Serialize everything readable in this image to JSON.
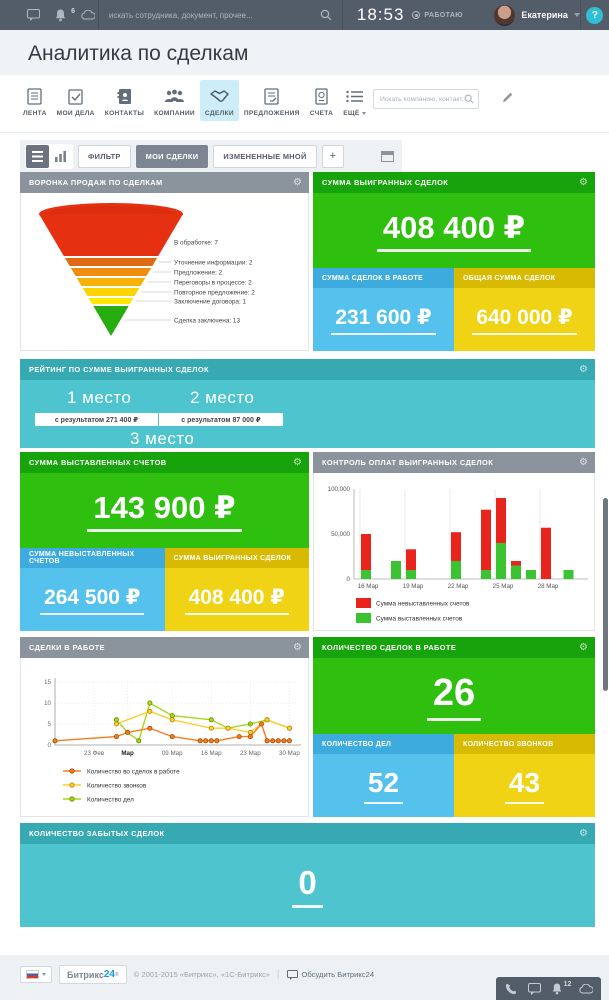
{
  "palette": {
    "topbar_bg": "#535c69",
    "widget_header_gray": "#8b949d",
    "green_header": "#17a30b",
    "green_body": "#2fc00f",
    "blue_header": "#3dabdd",
    "blue_body": "#55c2ee",
    "yellow_header": "#d8ba02",
    "yellow_body": "#f0d314",
    "teal_header": "#37a9b2",
    "teal_body": "#4ec4ce",
    "active_tab_bg": "#cdeef8"
  },
  "topbar": {
    "bell_count": "6",
    "search_placeholder": "искать сотрудника, документ, прочее...",
    "time": "18:53",
    "status": "РАБОТАЮ",
    "user_name": "Екатерина",
    "help": "?"
  },
  "page_title": "Аналитика по сделкам",
  "nav": {
    "tabs": [
      {
        "name": "lenta",
        "label": "ЛЕНТА",
        "icon": "feed-icon"
      },
      {
        "name": "moi-dela",
        "label": "МОИ ДЕЛА",
        "icon": "tasks-icon"
      },
      {
        "name": "kontakty",
        "label": "КОНТАКТЫ",
        "icon": "contacts-icon"
      },
      {
        "name": "kompanii",
        "label": "КОМПАНИИ",
        "icon": "companies-icon"
      },
      {
        "name": "sdelki",
        "label": "СДЕЛКИ",
        "icon": "deals-handshake-icon",
        "active": true
      },
      {
        "name": "predlozheniya",
        "label": "ПРЕДЛОЖЕНИЯ",
        "icon": "quotes-icon"
      },
      {
        "name": "scheta",
        "label": "СЧЕТА",
        "icon": "invoices-icon"
      },
      {
        "name": "eshche",
        "label": "ЕЩЁ",
        "icon": "more-list-icon",
        "caret": true
      }
    ],
    "search_placeholder": "Искать компанию, контакт, лид."
  },
  "toolbar": {
    "filter": "ФИЛЬТР",
    "preset_my_deals": "МОИ СДЕЛКИ",
    "preset_changed_by_me": "ИЗМЕНЕННЫЕ МНОЙ",
    "add": "+"
  },
  "widgets": {
    "funnel": {
      "title": "ВОРОНКА ПРОДАЖ ПО СДЕЛКАМ"
    },
    "won_sum": {
      "title": "СУММА ВЫИГРАННЫХ СДЕЛОК",
      "value": "408 400 ₽",
      "sub_left": {
        "title": "СУММА СДЕЛОК В РАБОТЕ",
        "value": "231 600 ₽"
      },
      "sub_right": {
        "title": "ОБЩАЯ СУММА СДЕЛОК",
        "value": "640 000 ₽"
      }
    },
    "rating": {
      "title": "РЕЙТИНГ ПО СУММЕ ВЫИГРАННЫХ СДЕЛОК",
      "place1": "1 место",
      "place1_result": "с результатом 271 400 ₽",
      "place2": "2 место",
      "place2_result": "с результатом 87 000 ₽",
      "place3": "3 место"
    },
    "invoiced_sum": {
      "title": "СУММА ВЫСТАВЛЕННЫХ СЧЕТОВ",
      "value": "143 900 ₽",
      "sub_left": {
        "title": "СУММА НЕВЫСТАВЛЕННЫХ СЧЕТОВ",
        "value": "264 500 ₽"
      },
      "sub_right": {
        "title": "СУММА ВЫИГРАННЫХ СДЕЛОК",
        "value": "408 400 ₽"
      }
    },
    "payment_control": {
      "title": "КОНТРОЛЬ ОПЛАТ ВЫИГРАННЫХ СДЕЛОК"
    },
    "deals_line": {
      "title": "СДЕЛКИ В РАБОТЕ"
    },
    "deals_count": {
      "title": "КОЛИЧЕСТВО СДЕЛОК В РАБОТЕ",
      "value": "26",
      "sub_left": {
        "title": "КОЛИЧЕСТВО ДЕЛ",
        "value": "52"
      },
      "sub_right": {
        "title": "КОЛИЧЕСТВО ЗВОНКОВ",
        "value": "43"
      }
    },
    "forgotten": {
      "title": "КОЛИЧЕСТВО ЗАБЫТЫХ СДЕЛОК",
      "value": "0"
    }
  },
  "chart_data": [
    {
      "type": "funnel",
      "title": "ВОРОНКА ПРОДАЖ ПО СДЕЛКАМ",
      "stages": [
        {
          "label": "В обработке",
          "value": 7,
          "color": "#e53012"
        },
        {
          "label": "Уточнение информации",
          "value": 2,
          "color": "#e06a14"
        },
        {
          "label": "Предложение",
          "value": 2,
          "color": "#ef8d0e"
        },
        {
          "label": "Переговоры в процессе",
          "value": 2,
          "color": "#f6b306"
        },
        {
          "label": "Повторное предложение",
          "value": 2,
          "color": "#fdd301"
        },
        {
          "label": "Заключение договора",
          "value": 1,
          "color": "#ffe603"
        },
        {
          "label": "Сделка заключена",
          "value": 13,
          "color": "#27ad0f"
        }
      ]
    },
    {
      "type": "bar",
      "stacked": true,
      "title": "КОНТРОЛЬ ОПЛАТ ВЫИГРАННЫХ СДЕЛОК",
      "ylim": [
        0,
        100000
      ],
      "yticks": [
        {
          "value": 0,
          "label": "0"
        },
        {
          "value": 50000,
          "label": "50,000"
        },
        {
          "value": 100000,
          "label": "100,000"
        }
      ],
      "x_gridlines": [
        {
          "day": 16,
          "label": "16 Мар"
        },
        {
          "day": 19,
          "label": "19 Мар"
        },
        {
          "day": 22,
          "label": "22 Мар"
        },
        {
          "day": 25,
          "label": "25 Мар"
        },
        {
          "day": 28,
          "label": "28 Мар"
        }
      ],
      "legend": [
        {
          "label": "Сумма невыставленных счетов",
          "color": "#e8251c"
        },
        {
          "label": "Сумма выставленных счетов",
          "color": "#3cc331"
        }
      ],
      "bars": [
        {
          "day": 16,
          "invoiced": 10000,
          "uninvoiced": 40000
        },
        {
          "day": 18,
          "invoiced": 20000,
          "uninvoiced": 0
        },
        {
          "day": 19,
          "invoiced": 10000,
          "uninvoiced": 23000
        },
        {
          "day": 22,
          "invoiced": 20000,
          "uninvoiced": 32000
        },
        {
          "day": 24,
          "invoiced": 10000,
          "uninvoiced": 67000
        },
        {
          "day": 25,
          "invoiced": 40000,
          "uninvoiced": 50000
        },
        {
          "day": 26,
          "invoiced": 15000,
          "uninvoiced": 5000
        },
        {
          "day": 27,
          "invoiced": 10000,
          "uninvoiced": 0
        },
        {
          "day": 28,
          "invoiced": 0,
          "uninvoiced": 57000
        },
        {
          "day": 29.5,
          "invoiced": 10000,
          "uninvoiced": 0
        }
      ]
    },
    {
      "type": "line",
      "title": "СДЕЛКИ В РАБОТЕ",
      "ylim": [
        0,
        15
      ],
      "yticks": [
        0,
        5,
        10,
        15
      ],
      "x_gridlines": [
        {
          "day": 7,
          "label": "23 Фев"
        },
        {
          "day": 13,
          "label": "Мар",
          "bold": true
        },
        {
          "day": 21,
          "label": "09 Мар"
        },
        {
          "day": 28,
          "label": "16 Мар"
        },
        {
          "day": 35,
          "label": "23 Мар"
        },
        {
          "day": 42,
          "label": "30 Мар"
        }
      ],
      "series": [
        {
          "name": "Количество во сделок в работе",
          "color": "#f57d1f",
          "dot": "#a34d00",
          "points": [
            [
              0,
              1
            ],
            [
              11,
              2
            ],
            [
              13,
              3
            ],
            [
              17,
              4
            ],
            [
              21,
              2
            ],
            [
              26,
              1
            ],
            [
              27,
              1
            ],
            [
              28,
              1
            ],
            [
              29,
              1
            ],
            [
              33,
              2
            ],
            [
              35,
              2
            ],
            [
              37,
              5
            ],
            [
              38,
              1
            ],
            [
              39,
              1
            ],
            [
              40,
              1
            ],
            [
              41,
              1
            ],
            [
              42,
              1
            ]
          ]
        },
        {
          "name": "Количество звонков",
          "color": "#ffcc33",
          "dot": "#b08900",
          "points": [
            [
              11,
              5
            ],
            [
              17,
              8
            ],
            [
              21,
              6
            ],
            [
              28,
              4
            ],
            [
              31,
              4
            ],
            [
              35,
              3
            ],
            [
              38,
              6
            ],
            [
              42,
              4
            ]
          ]
        },
        {
          "name": "Количество дел",
          "color": "#a8d816",
          "dot": "#5f8a00",
          "points": [
            [
              11,
              6
            ],
            [
              13,
              3
            ],
            [
              15,
              1
            ],
            [
              17,
              10
            ],
            [
              21,
              7
            ],
            [
              28,
              6
            ],
            [
              31,
              4
            ],
            [
              35,
              5
            ],
            [
              38,
              6
            ],
            [
              42,
              4
            ]
          ]
        }
      ]
    }
  ],
  "footer": {
    "logo_part1": "Битрикс",
    "logo_part2": "24",
    "logo_reg": "®",
    "copyright": "© 2001-2015 «Битрикс», «1С-Битрикс»",
    "separator": "|",
    "discuss": "Обсудить Битрикс24",
    "dock_bell_count": "12"
  }
}
